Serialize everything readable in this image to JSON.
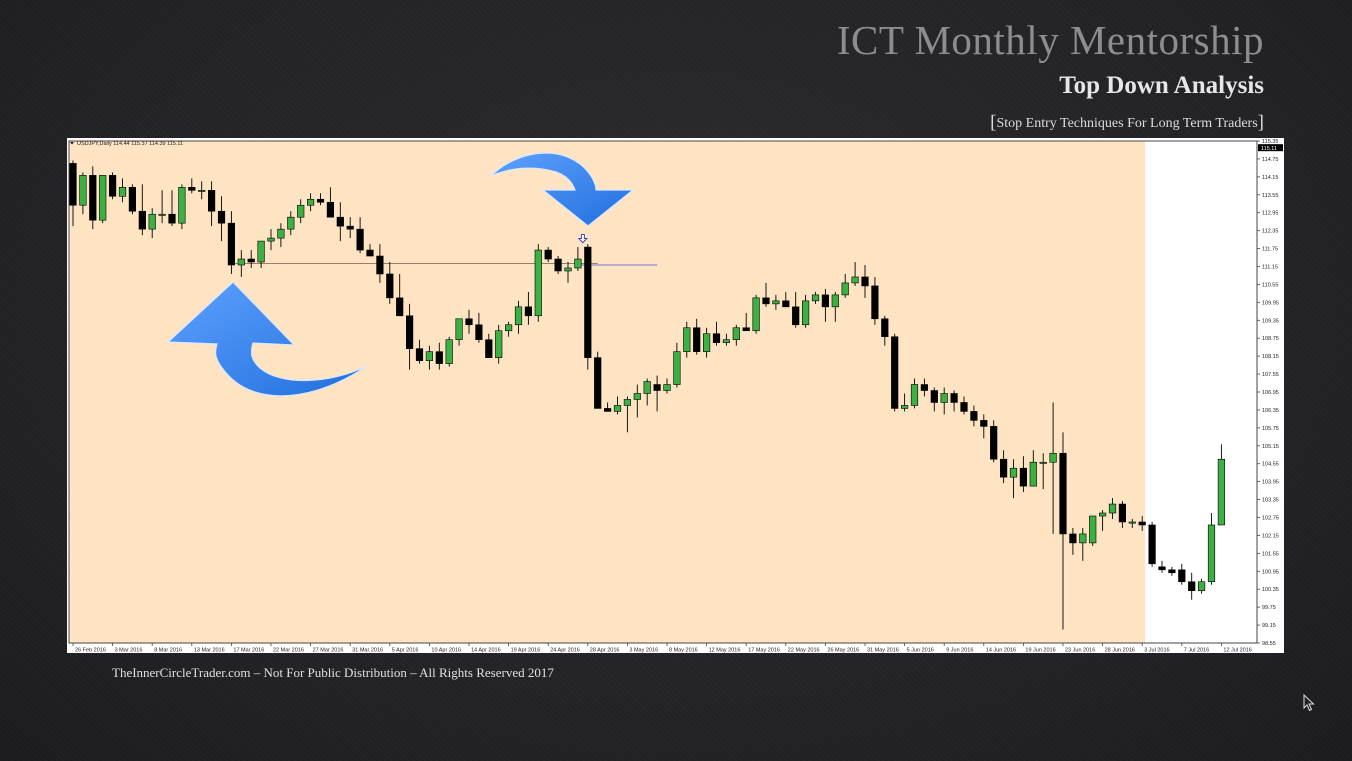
{
  "header": {
    "title": "ICT Monthly Mentorship",
    "subtitle": "Top Down Analysis",
    "tagline": "Stop Entry Techniques For Long Term Traders"
  },
  "footer": {
    "text": "TheInnerCircleTrader.com – Not For Public Distribution – All Rights Reserved 2017"
  },
  "colors": {
    "panel_bg": "#ffe4c4",
    "future_bg": "#ffffff",
    "bull_candle": "#3cb043",
    "bear_candle": "#000000",
    "level_line": "#9b7d6e",
    "entry_line": "#7070e0",
    "arrow": "#1a6be0"
  },
  "icons": [
    "curved-arrow-up-icon",
    "curved-arrow-down-icon",
    "hollow-down-arrow-icon",
    "mouse-pointer-icon"
  ],
  "chart_data": {
    "type": "candlestick",
    "symbol_label": "USDJPY,Daily  114.44 115.37 114.39 115.11",
    "ylim": [
      98.55,
      115.35
    ],
    "price_labels": [
      "115.35",
      "114.75",
      "114.15",
      "113.55",
      "112.95",
      "112.35",
      "111.75",
      "111.15",
      "110.55",
      "109.95",
      "109.35",
      "108.75",
      "108.15",
      "107.55",
      "106.95",
      "106.35",
      "105.75",
      "105.15",
      "104.55",
      "103.95",
      "103.35",
      "102.75",
      "102.15",
      "101.55",
      "100.95",
      "100.35",
      "99.75",
      "99.15",
      "98.55"
    ],
    "current_price_label": "115.11",
    "date_labels": [
      {
        "i": 0,
        "t": "26 Feb 2016"
      },
      {
        "i": 4,
        "t": "3 Mar 2016"
      },
      {
        "i": 8,
        "t": "8 Mar 2016"
      },
      {
        "i": 12,
        "t": "13 Mar 2016"
      },
      {
        "i": 16,
        "t": "17 Mar 2016"
      },
      {
        "i": 20,
        "t": "22 Mar 2016"
      },
      {
        "i": 24,
        "t": "27 Mar 2016"
      },
      {
        "i": 28,
        "t": "31 Mar 2016"
      },
      {
        "i": 32,
        "t": "5 Apr 2016"
      },
      {
        "i": 36,
        "t": "10 Apr 2016"
      },
      {
        "i": 40,
        "t": "14 Apr 2016"
      },
      {
        "i": 44,
        "t": "19 Apr 2016"
      },
      {
        "i": 48,
        "t": "24 Apr 2016"
      },
      {
        "i": 52,
        "t": "28 Apr 2016"
      },
      {
        "i": 56,
        "t": "3 May 2016"
      },
      {
        "i": 60,
        "t": "8 May 2016"
      },
      {
        "i": 64,
        "t": "12 May 2016"
      },
      {
        "i": 68,
        "t": "17 May 2016"
      },
      {
        "i": 72,
        "t": "22 May 2016"
      },
      {
        "i": 76,
        "t": "26 May 2016"
      },
      {
        "i": 80,
        "t": "31 May 2016"
      },
      {
        "i": 84,
        "t": "5 Jun 2016"
      },
      {
        "i": 88,
        "t": "9 Jun 2016"
      },
      {
        "i": 92,
        "t": "14 Jun 2016"
      },
      {
        "i": 96,
        "t": "19 Jun 2016"
      },
      {
        "i": 100,
        "t": "23 Jun 2016"
      },
      {
        "i": 104,
        "t": "28 Jun 2016"
      },
      {
        "i": 108,
        "t": "3 Jul 2016"
      },
      {
        "i": 112,
        "t": "7 Jul 2016"
      },
      {
        "i": 116,
        "t": "12 Jul 2016"
      }
    ],
    "future_shade_start_index": 108.3,
    "level_line": {
      "price": 111.25,
      "from_index": 16,
      "to_index": 53
    },
    "entry_line": {
      "price": 111.2,
      "from_index": 51,
      "to_index": 59
    },
    "marker_index": 51.5,
    "candles": [
      [
        114.6,
        114.7,
        112.5,
        113.2
      ],
      [
        113.2,
        114.3,
        112.9,
        114.2
      ],
      [
        114.2,
        114.5,
        112.4,
        112.7
      ],
      [
        112.7,
        114.2,
        112.6,
        114.2
      ],
      [
        114.2,
        114.3,
        113.4,
        113.5
      ],
      [
        113.5,
        114.1,
        113.3,
        113.8
      ],
      [
        113.8,
        113.9,
        112.9,
        113.0
      ],
      [
        113.0,
        113.9,
        112.2,
        112.4
      ],
      [
        112.4,
        113.1,
        112.1,
        112.9
      ],
      [
        112.9,
        113.7,
        112.6,
        112.9
      ],
      [
        112.9,
        113.7,
        112.5,
        112.6
      ],
      [
        112.6,
        113.9,
        112.4,
        113.8
      ],
      [
        113.8,
        114.1,
        113.6,
        113.7
      ],
      [
        113.7,
        114.0,
        113.4,
        113.7
      ],
      [
        113.7,
        114.0,
        112.5,
        113.0
      ],
      [
        113.0,
        113.5,
        112.0,
        112.6
      ],
      [
        112.6,
        113.0,
        110.9,
        111.2
      ],
      [
        111.2,
        111.7,
        110.8,
        111.4
      ],
      [
        111.4,
        111.7,
        111.1,
        111.3
      ],
      [
        111.3,
        112.0,
        111.1,
        112.0
      ],
      [
        112.0,
        112.4,
        111.7,
        112.1
      ],
      [
        112.1,
        112.6,
        111.8,
        112.4
      ],
      [
        112.4,
        113.0,
        112.2,
        112.8
      ],
      [
        112.8,
        113.4,
        112.6,
        113.2
      ],
      [
        113.2,
        113.6,
        113.0,
        113.4
      ],
      [
        113.4,
        113.6,
        113.2,
        113.3
      ],
      [
        113.3,
        113.8,
        112.8,
        112.8
      ],
      [
        112.8,
        113.3,
        112.0,
        112.5
      ],
      [
        112.5,
        112.8,
        112.1,
        112.4
      ],
      [
        112.4,
        112.8,
        111.6,
        111.7
      ],
      [
        111.7,
        111.9,
        111.5,
        111.5
      ],
      [
        111.5,
        111.9,
        110.6,
        110.9
      ],
      [
        110.9,
        111.3,
        109.9,
        110.1
      ],
      [
        110.1,
        110.9,
        109.6,
        109.5
      ],
      [
        109.5,
        109.9,
        107.7,
        108.4
      ],
      [
        108.4,
        108.7,
        107.9,
        108.0
      ],
      [
        108.0,
        108.5,
        107.7,
        108.3
      ],
      [
        108.3,
        108.6,
        107.7,
        107.9
      ],
      [
        107.9,
        108.8,
        107.8,
        108.7
      ],
      [
        108.7,
        109.4,
        108.5,
        109.4
      ],
      [
        109.4,
        109.7,
        108.9,
        109.2
      ],
      [
        109.2,
        109.6,
        108.6,
        108.7
      ],
      [
        108.7,
        108.9,
        108.1,
        108.1
      ],
      [
        108.1,
        109.2,
        107.9,
        109.0
      ],
      [
        109.0,
        109.3,
        108.8,
        109.2
      ],
      [
        109.2,
        110.0,
        108.9,
        109.8
      ],
      [
        109.8,
        110.3,
        109.2,
        109.5
      ],
      [
        109.5,
        111.9,
        109.3,
        111.7
      ],
      [
        111.7,
        111.8,
        111.3,
        111.4
      ],
      [
        111.4,
        111.5,
        110.9,
        111.0
      ],
      [
        111.0,
        111.3,
        110.6,
        111.1
      ],
      [
        111.1,
        111.8,
        111.0,
        111.4
      ],
      [
        111.8,
        111.9,
        107.7,
        108.1
      ],
      [
        108.1,
        108.3,
        106.4,
        106.4
      ],
      [
        106.4,
        106.6,
        106.3,
        106.3
      ],
      [
        106.3,
        106.8,
        106.2,
        106.5
      ],
      [
        106.5,
        106.8,
        105.6,
        106.7
      ],
      [
        106.7,
        107.2,
        106.1,
        106.9
      ],
      [
        106.9,
        107.4,
        106.5,
        107.3
      ],
      [
        107.2,
        107.5,
        106.3,
        107.0
      ],
      [
        107.0,
        107.4,
        106.9,
        107.2
      ],
      [
        107.2,
        108.6,
        107.1,
        108.3
      ],
      [
        108.3,
        109.3,
        108.1,
        109.1
      ],
      [
        109.1,
        109.4,
        108.2,
        108.3
      ],
      [
        108.3,
        109.1,
        108.1,
        108.9
      ],
      [
        108.9,
        109.3,
        108.5,
        108.6
      ],
      [
        108.6,
        108.9,
        108.5,
        108.7
      ],
      [
        108.7,
        109.2,
        108.5,
        109.1
      ],
      [
        109.1,
        109.6,
        109.0,
        109.0
      ],
      [
        109.0,
        110.2,
        108.9,
        110.1
      ],
      [
        110.1,
        110.6,
        109.8,
        109.9
      ],
      [
        109.9,
        110.2,
        109.7,
        110.0
      ],
      [
        110.0,
        110.3,
        109.8,
        109.8
      ],
      [
        109.8,
        110.3,
        109.1,
        109.2
      ],
      [
        109.2,
        110.2,
        109.1,
        110.0
      ],
      [
        110.0,
        110.3,
        109.9,
        110.2
      ],
      [
        110.2,
        110.4,
        109.3,
        109.8
      ],
      [
        109.8,
        110.3,
        109.3,
        110.2
      ],
      [
        110.2,
        110.9,
        110.1,
        110.6
      ],
      [
        110.6,
        111.3,
        110.5,
        110.8
      ],
      [
        110.8,
        111.2,
        110.1,
        110.5
      ],
      [
        110.5,
        110.8,
        109.2,
        109.4
      ],
      [
        109.4,
        109.5,
        108.5,
        108.8
      ],
      [
        108.8,
        108.9,
        106.3,
        106.4
      ],
      [
        106.4,
        106.9,
        106.3,
        106.5
      ],
      [
        106.5,
        107.4,
        106.4,
        107.2
      ],
      [
        107.2,
        107.4,
        106.8,
        107.0
      ],
      [
        107.0,
        107.1,
        106.3,
        106.6
      ],
      [
        106.6,
        107.1,
        106.2,
        106.9
      ],
      [
        106.9,
        107.0,
        106.3,
        106.6
      ],
      [
        106.6,
        106.8,
        106.2,
        106.3
      ],
      [
        106.3,
        106.5,
        105.8,
        106.0
      ],
      [
        106.0,
        106.2,
        105.4,
        105.8
      ],
      [
        105.8,
        106.0,
        104.6,
        104.7
      ],
      [
        104.7,
        105.0,
        103.9,
        104.1
      ],
      [
        104.1,
        104.7,
        103.4,
        104.4
      ],
      [
        104.4,
        104.8,
        103.6,
        103.8
      ],
      [
        103.8,
        105.0,
        103.8,
        104.6
      ],
      [
        104.6,
        104.9,
        103.7,
        104.6
      ],
      [
        104.6,
        106.6,
        102.2,
        104.9
      ],
      [
        104.9,
        105.6,
        99.0,
        102.2
      ],
      [
        102.2,
        102.4,
        101.5,
        101.9
      ],
      [
        101.9,
        102.4,
        101.3,
        102.2
      ],
      [
        101.9,
        102.8,
        101.8,
        102.8
      ],
      [
        102.8,
        103.0,
        102.3,
        102.9
      ],
      [
        102.9,
        103.4,
        102.7,
        103.2
      ],
      [
        103.2,
        103.3,
        102.4,
        102.6
      ],
      [
        102.6,
        102.7,
        102.4,
        102.6
      ],
      [
        102.6,
        102.8,
        102.3,
        102.5
      ],
      [
        102.5,
        102.6,
        101.1,
        101.2
      ],
      [
        101.1,
        101.3,
        100.9,
        101.0
      ],
      [
        101.0,
        101.1,
        100.8,
        100.9
      ],
      [
        101.0,
        101.2,
        100.5,
        100.6
      ],
      [
        100.6,
        100.9,
        100.0,
        100.3
      ],
      [
        100.3,
        100.7,
        100.2,
        100.6
      ],
      [
        100.6,
        102.9,
        100.5,
        102.5
      ],
      [
        102.5,
        105.2,
        102.5,
        104.7
      ]
    ]
  }
}
